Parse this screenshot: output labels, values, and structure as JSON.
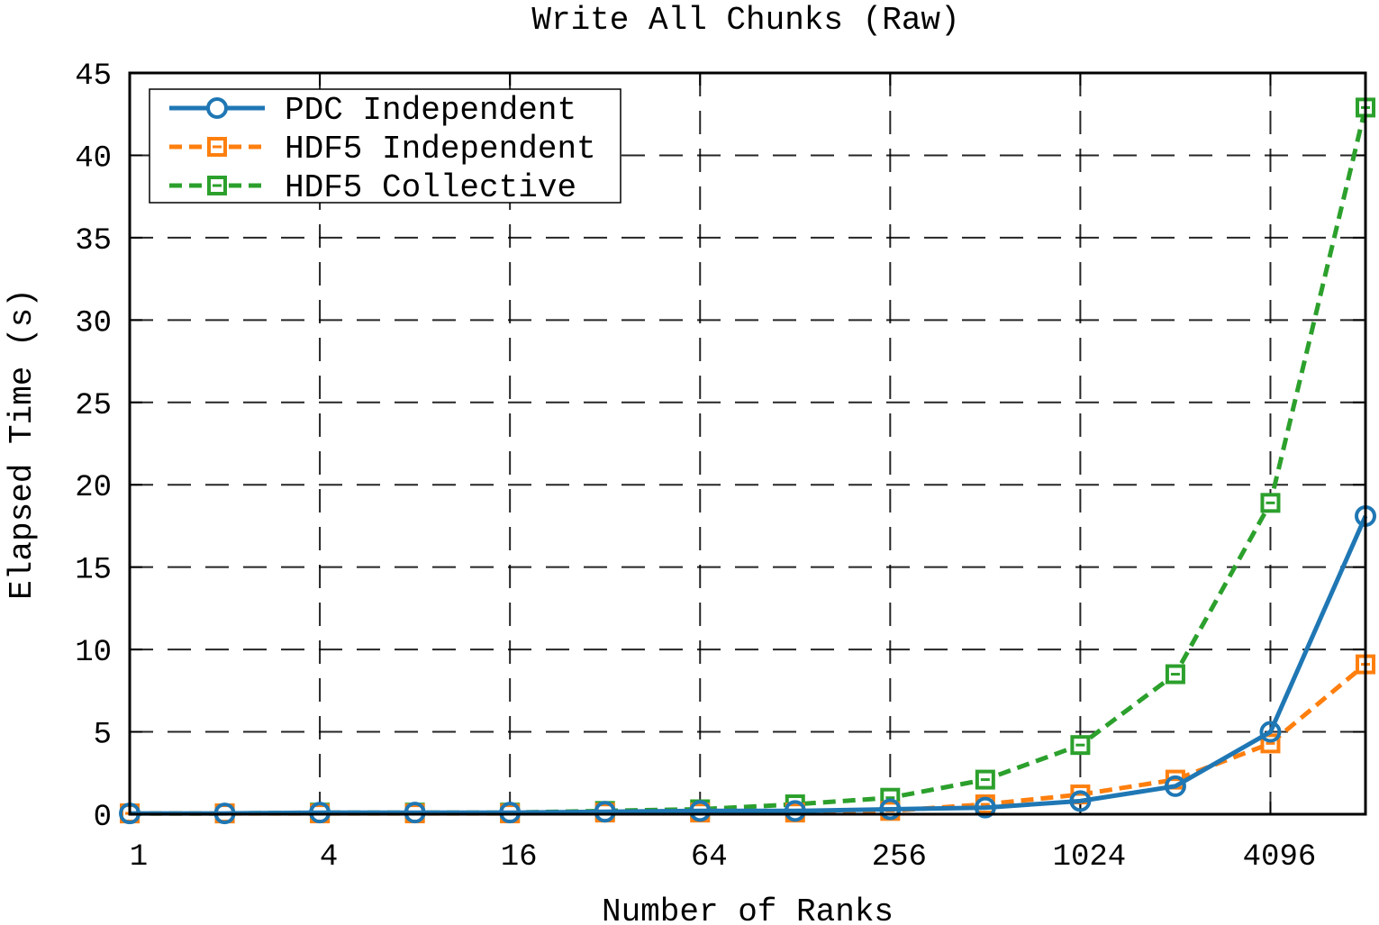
{
  "chart_data": {
    "type": "line",
    "title": "Write All Chunks (Raw)",
    "xlabel": "Number of Ranks",
    "ylabel": "Elapsed Time (s)",
    "x_scale": "log2",
    "x": [
      1,
      2,
      4,
      8,
      16,
      32,
      64,
      128,
      256,
      512,
      1024,
      2048,
      4096,
      8192
    ],
    "x_ticks": [
      1,
      4,
      16,
      64,
      256,
      1024,
      4096
    ],
    "x_tick_labels": [
      "1",
      "4",
      "16",
      "64",
      "256",
      "1024",
      "4096"
    ],
    "y_ticks": [
      0,
      5,
      10,
      15,
      20,
      25,
      30,
      35,
      40,
      45
    ],
    "ylim": [
      0,
      45
    ],
    "grid": true,
    "legend_position": "top-left",
    "series": [
      {
        "name": "PDC Independent",
        "color": "#1f77b4",
        "marker": "circle",
        "line_style": "solid",
        "values": [
          0.05,
          0.05,
          0.1,
          0.1,
          0.1,
          0.15,
          0.2,
          0.2,
          0.3,
          0.4,
          0.8,
          1.7,
          5.0,
          18.1
        ]
      },
      {
        "name": "HDF5 Independent",
        "color": "#ff7f0e",
        "marker": "square",
        "line_style": "dashed",
        "values": [
          0.05,
          0.05,
          0.05,
          0.05,
          0.05,
          0.1,
          0.1,
          0.1,
          0.2,
          0.6,
          1.2,
          2.1,
          4.3,
          9.1
        ]
      },
      {
        "name": "HDF5 Collective",
        "color": "#2ca02c",
        "marker": "square",
        "line_style": "dashed",
        "values": [
          0.05,
          0.05,
          0.1,
          0.1,
          0.1,
          0.2,
          0.3,
          0.6,
          1.0,
          2.1,
          4.2,
          8.5,
          18.9,
          42.9
        ]
      }
    ]
  }
}
